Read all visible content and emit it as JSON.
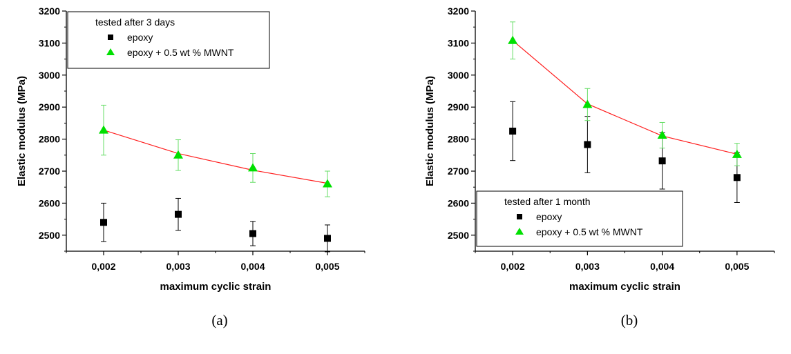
{
  "chart_data": [
    {
      "type": "scatter",
      "caption": "(a)",
      "xlabel": "maximum cyclic strain",
      "ylabel": "Elastic modulus (MPa)",
      "x_ticks": [
        "0,002",
        "0,003",
        "0,004",
        "0,005"
      ],
      "x_values": [
        0.002,
        0.003,
        0.004,
        0.005
      ],
      "xlim": [
        0.0015,
        0.0055
      ],
      "ylim": [
        2450,
        3200
      ],
      "y_ticks": [
        2500,
        2600,
        2700,
        2800,
        2900,
        3000,
        3100,
        3200
      ],
      "legend": {
        "title": "tested after 3 days",
        "position": "top-left"
      },
      "series": [
        {
          "name": "epoxy",
          "marker": "square",
          "color": "#000000",
          "values": [
            2540,
            2565,
            2505,
            2490
          ],
          "error": [
            60,
            50,
            38,
            42
          ],
          "fit_line": false
        },
        {
          "name": "epoxy + 0.5 wt % MWNT",
          "marker": "triangle",
          "color": "#00e000",
          "error_color": "#66dd66",
          "line_color": "#ff2020",
          "values": [
            2828,
            2750,
            2710,
            2660
          ],
          "error": [
            78,
            48,
            45,
            40
          ],
          "fit_line": true,
          "fit_values": [
            2828,
            2755,
            2703,
            2662
          ]
        }
      ]
    },
    {
      "type": "scatter",
      "caption": "(b)",
      "xlabel": "maximum cyclic strain",
      "ylabel": "Elastic modulus (MPa)",
      "x_ticks": [
        "0,002",
        "0,003",
        "0,004",
        "0,005"
      ],
      "x_values": [
        0.002,
        0.003,
        0.004,
        0.005
      ],
      "xlim": [
        0.0015,
        0.0055
      ],
      "ylim": [
        2450,
        3200
      ],
      "y_ticks": [
        2500,
        2600,
        2700,
        2800,
        2900,
        3000,
        3100,
        3200
      ],
      "legend": {
        "title": "tested after 1 month",
        "position": "bottom-left"
      },
      "series": [
        {
          "name": "epoxy",
          "marker": "square",
          "color": "#000000",
          "values": [
            2825,
            2783,
            2732,
            2680
          ],
          "error": [
            92,
            88,
            88,
            78
          ],
          "fit_line": false
        },
        {
          "name": "epoxy + 0.5 wt % MWNT",
          "marker": "triangle",
          "color": "#00e000",
          "error_color": "#66dd66",
          "line_color": "#ff2020",
          "values": [
            3108,
            2908,
            2812,
            2752
          ],
          "error": [
            58,
            50,
            40,
            35
          ],
          "fit_line": true,
          "fit_values": [
            3108,
            2910,
            2810,
            2753
          ]
        }
      ]
    }
  ]
}
